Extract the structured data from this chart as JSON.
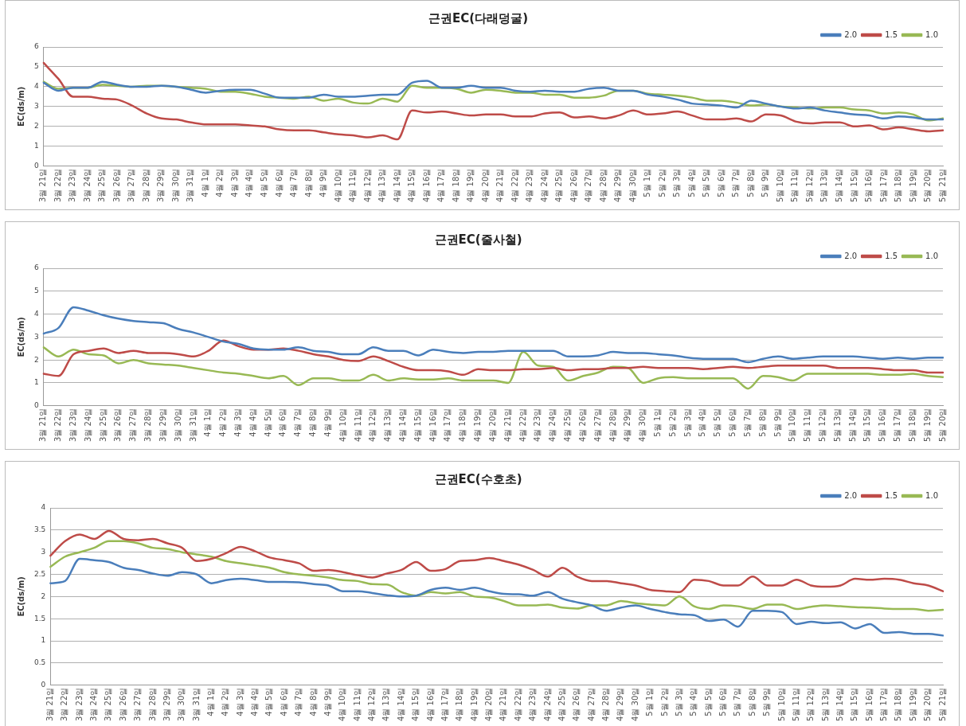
{
  "chart_data": [
    {
      "type": "line",
      "title": "근권EC(다래덩굴)",
      "ylabel": "EC(ds/m)",
      "ylim": [
        0,
        6
      ],
      "yticks": [
        0,
        1,
        2,
        3,
        4,
        5,
        6
      ],
      "grid": "y",
      "legend": "top right",
      "marker": "none",
      "line_style": "solid",
      "categories": [
        "3월 21일",
        "3월 22일",
        "3월 23일",
        "3월 24일",
        "3월 25일",
        "3월 26일",
        "3월 27일",
        "3월 28일",
        "3월 29일",
        "3월 30일",
        "3월 31일",
        "4월 1일",
        "4월 2일",
        "4월 3일",
        "4월 4일",
        "4월 5일",
        "4월 6일",
        "4월 7일",
        "4월 8일",
        "4월 9일",
        "4월 10일",
        "4월 11일",
        "4월 12일",
        "4월 13일",
        "4월 14일",
        "4월 15일",
        "4월 16일",
        "4월 17일",
        "4월 18일",
        "4월 19일",
        "4월 20일",
        "4월 21일",
        "4월 22일",
        "4월 23일",
        "4월 24일",
        "4월 25일",
        "4월 26일",
        "4월 27일",
        "4월 28일",
        "4월 29일",
        "4월 30일",
        "5월 1일",
        "5월 2일",
        "5월 3일",
        "5월 4일",
        "5월 5일",
        "5월 6일",
        "5월 7일",
        "5월 8일",
        "5월 9일",
        "5월 10일",
        "5월 11일",
        "5월 12일",
        "5월 13일",
        "5월 14일",
        "5월 15일",
        "5월 16일",
        "5월 17일",
        "5월 18일",
        "5월 19일",
        "5월 20일",
        "5월 21일"
      ],
      "series": [
        {
          "name": "2.0",
          "color": "#4a7ebb",
          "values": [
            4.2,
            3.8,
            3.95,
            3.95,
            4.25,
            4.1,
            4.0,
            4.0,
            4.05,
            4.0,
            3.85,
            3.7,
            3.8,
            3.85,
            3.85,
            3.65,
            3.45,
            3.45,
            3.45,
            3.6,
            3.5,
            3.5,
            3.55,
            3.6,
            3.6,
            4.2,
            4.3,
            3.95,
            3.95,
            4.05,
            3.95,
            3.95,
            3.8,
            3.75,
            3.8,
            3.75,
            3.75,
            3.9,
            3.95,
            3.8,
            3.8,
            3.6,
            3.5,
            3.35,
            3.15,
            3.1,
            3.05,
            2.95,
            3.3,
            3.15,
            3.0,
            2.9,
            2.95,
            2.8,
            2.7,
            2.6,
            2.55,
            2.4,
            2.5,
            2.45,
            2.35,
            2.35
          ]
        },
        {
          "name": "1.5",
          "color": "#be4b48",
          "values": [
            5.2,
            4.4,
            3.5,
            3.5,
            3.4,
            3.35,
            3.05,
            2.65,
            2.4,
            2.35,
            2.2,
            2.1,
            2.1,
            2.1,
            2.05,
            2.0,
            1.85,
            1.8,
            1.8,
            1.7,
            1.6,
            1.55,
            1.45,
            1.55,
            1.35,
            2.8,
            2.7,
            2.75,
            2.65,
            2.55,
            2.6,
            2.6,
            2.5,
            2.5,
            2.65,
            2.7,
            2.45,
            2.5,
            2.4,
            2.55,
            2.8,
            2.6,
            2.65,
            2.75,
            2.55,
            2.35,
            2.35,
            2.4,
            2.25,
            2.6,
            2.55,
            2.25,
            2.15,
            2.2,
            2.2,
            2.0,
            2.05,
            1.85,
            1.95,
            1.85,
            1.75,
            1.8
          ]
        },
        {
          "name": "1.0",
          "color": "#98b954",
          "values": [
            4.25,
            3.9,
            3.95,
            3.95,
            4.1,
            4.05,
            4.0,
            4.05,
            4.05,
            4.0,
            3.95,
            3.9,
            3.75,
            3.75,
            3.65,
            3.5,
            3.45,
            3.4,
            3.5,
            3.3,
            3.4,
            3.2,
            3.15,
            3.4,
            3.25,
            4.05,
            3.95,
            3.95,
            3.9,
            3.7,
            3.85,
            3.8,
            3.7,
            3.7,
            3.6,
            3.6,
            3.45,
            3.45,
            3.55,
            3.8,
            3.8,
            3.65,
            3.6,
            3.55,
            3.45,
            3.3,
            3.3,
            3.2,
            3.05,
            3.1,
            3.0,
            2.95,
            2.9,
            2.95,
            2.95,
            2.85,
            2.8,
            2.65,
            2.7,
            2.6,
            2.3,
            2.4
          ]
        }
      ]
    },
    {
      "type": "line",
      "title": "근권EC(줄사철)",
      "ylabel": "EC(ds/m)",
      "ylim": [
        0,
        6
      ],
      "yticks": [
        0,
        1,
        2,
        3,
        4,
        5,
        6
      ],
      "grid": "y",
      "legend": "top right",
      "marker": "none",
      "line_style": "solid",
      "categories": [
        "3월 21일",
        "3월 22일",
        "3월 23일",
        "3월 24일",
        "3월 25일",
        "3월 26일",
        "3월 27일",
        "3월 28일",
        "3월 29일",
        "3월 30일",
        "3월 31일",
        "4월 1일",
        "4월 2일",
        "4월 3일",
        "4월 4일",
        "4월 5일",
        "4월 6일",
        "4월 7일",
        "4월 8일",
        "4월 9일",
        "4월 10일",
        "4월 11일",
        "4월 12일",
        "4월 13일",
        "4월 14일",
        "4월 15일",
        "4월 16일",
        "4월 17일",
        "4월 18일",
        "4월 19일",
        "4월 20일",
        "4월 21일",
        "4월 22일",
        "4월 23일",
        "4월 24일",
        "4월 25일",
        "4월 26일",
        "4월 27일",
        "4월 28일",
        "4월 29일",
        "4월 30일",
        "5월 1일",
        "5월 2일",
        "5월 3일",
        "5월 4일",
        "5월 5일",
        "5월 6일",
        "5월 7일",
        "5월 8일",
        "5월 9일",
        "5월 10일",
        "5월 11일",
        "5월 12일",
        "5월 13일",
        "5월 14일",
        "5월 15일",
        "5월 16일",
        "5월 17일",
        "5월 18일",
        "5월 19일",
        "5월 20일"
      ],
      "series": [
        {
          "name": "2.0",
          "color": "#4a7ebb",
          "values": [
            3.15,
            3.4,
            4.3,
            4.15,
            3.95,
            3.8,
            3.7,
            3.65,
            3.6,
            3.35,
            3.2,
            3.0,
            2.8,
            2.7,
            2.5,
            2.45,
            2.45,
            2.55,
            2.4,
            2.35,
            2.25,
            2.25,
            2.55,
            2.4,
            2.4,
            2.2,
            2.45,
            2.35,
            2.3,
            2.35,
            2.35,
            2.4,
            2.4,
            2.4,
            2.4,
            2.15,
            2.15,
            2.2,
            2.35,
            2.3,
            2.3,
            2.25,
            2.2,
            2.1,
            2.05,
            2.05,
            2.05,
            1.9,
            2.05,
            2.15,
            2.05,
            2.1,
            2.15,
            2.15,
            2.15,
            2.1,
            2.05,
            2.1,
            2.05,
            2.1,
            2.1
          ]
        },
        {
          "name": "1.5",
          "color": "#be4b48",
          "values": [
            1.4,
            1.3,
            2.25,
            2.4,
            2.5,
            2.3,
            2.4,
            2.3,
            2.3,
            2.25,
            2.15,
            2.4,
            2.85,
            2.6,
            2.45,
            2.45,
            2.5,
            2.4,
            2.25,
            2.15,
            2.0,
            1.95,
            2.15,
            1.95,
            1.7,
            1.55,
            1.55,
            1.5,
            1.35,
            1.6,
            1.55,
            1.55,
            1.6,
            1.6,
            1.65,
            1.55,
            1.6,
            1.6,
            1.65,
            1.65,
            1.7,
            1.65,
            1.65,
            1.65,
            1.6,
            1.65,
            1.7,
            1.65,
            1.7,
            1.75,
            1.75,
            1.75,
            1.75,
            1.65,
            1.65,
            1.65,
            1.6,
            1.55,
            1.55,
            1.45,
            1.45
          ]
        },
        {
          "name": "1.0",
          "color": "#98b954",
          "values": [
            2.55,
            2.15,
            2.45,
            2.25,
            2.2,
            1.85,
            2.0,
            1.85,
            1.8,
            1.75,
            1.65,
            1.55,
            1.45,
            1.4,
            1.3,
            1.2,
            1.3,
            0.9,
            1.2,
            1.2,
            1.1,
            1.1,
            1.35,
            1.1,
            1.2,
            1.15,
            1.15,
            1.2,
            1.1,
            1.1,
            1.1,
            1.0,
            2.35,
            1.75,
            1.7,
            1.1,
            1.3,
            1.45,
            1.7,
            1.65,
            1.0,
            1.2,
            1.25,
            1.2,
            1.2,
            1.2,
            1.2,
            0.75,
            1.3,
            1.25,
            1.1,
            1.4,
            1.4,
            1.4,
            1.4,
            1.4,
            1.35,
            1.35,
            1.4,
            1.3,
            1.25
          ]
        }
      ]
    },
    {
      "type": "line",
      "title": "근권EC(수호초)",
      "ylabel": "EC(ds/m)",
      "ylim": [
        0,
        4
      ],
      "yticks": [
        0,
        0.5,
        1,
        1.5,
        2,
        2.5,
        3,
        3.5,
        4
      ],
      "grid": "y",
      "legend": "top right",
      "marker": "none",
      "line_style": "solid",
      "categories": [
        "3월 21일",
        "3월 22일",
        "3월 23일",
        "3월 24일",
        "3월 25일",
        "3월 26일",
        "3월 27일",
        "3월 28일",
        "3월 29일",
        "3월 30일",
        "3월 31일",
        "4월 1일",
        "4월 2일",
        "4월 3일",
        "4월 4일",
        "4월 5일",
        "4월 6일",
        "4월 7일",
        "4월 8일",
        "4월 9일",
        "4월 10일",
        "4월 11일",
        "4월 12일",
        "4월 13일",
        "4월 14일",
        "4월 15일",
        "4월 16일",
        "4월 17일",
        "4월 18일",
        "4월 19일",
        "4월 20일",
        "4월 21일",
        "4월 22일",
        "4월 23일",
        "4월 24일",
        "4월 25일",
        "4월 26일",
        "4월 27일",
        "4월 28일",
        "4월 29일",
        "4월 30일",
        "5월 1일",
        "5월 2일",
        "5월 3일",
        "5월 4일",
        "5월 5일",
        "5월 6일",
        "5월 7일",
        "5월 8일",
        "5월 9일",
        "5월 10일",
        "5월 11일",
        "5월 12일",
        "5월 13일",
        "5월 14일",
        "5월 15일",
        "5월 16일",
        "5월 17일",
        "5월 18일",
        "5월 19일",
        "5월 20일",
        "5월 21일"
      ],
      "series": [
        {
          "name": "2.0",
          "color": "#4a7ebb",
          "values": [
            2.3,
            2.35,
            2.85,
            2.82,
            2.78,
            2.65,
            2.6,
            2.52,
            2.47,
            2.55,
            2.5,
            2.3,
            2.37,
            2.4,
            2.37,
            2.33,
            2.33,
            2.32,
            2.28,
            2.25,
            2.12,
            2.12,
            2.08,
            2.03,
            2.0,
            2.02,
            2.15,
            2.2,
            2.15,
            2.2,
            2.12,
            2.06,
            2.05,
            2.02,
            2.1,
            1.95,
            1.87,
            1.8,
            1.68,
            1.75,
            1.8,
            1.72,
            1.65,
            1.6,
            1.58,
            1.45,
            1.48,
            1.32,
            1.68,
            1.68,
            1.65,
            1.38,
            1.43,
            1.4,
            1.42,
            1.28,
            1.38,
            1.18,
            1.2,
            1.16,
            1.16,
            1.12
          ]
        },
        {
          "name": "1.5",
          "color": "#be4b48",
          "values": [
            2.92,
            3.25,
            3.4,
            3.3,
            3.48,
            3.3,
            3.27,
            3.3,
            3.2,
            3.1,
            2.8,
            2.85,
            2.98,
            3.12,
            3.02,
            2.88,
            2.82,
            2.75,
            2.58,
            2.6,
            2.55,
            2.48,
            2.43,
            2.52,
            2.6,
            2.78,
            2.58,
            2.62,
            2.8,
            2.82,
            2.87,
            2.8,
            2.72,
            2.6,
            2.45,
            2.65,
            2.45,
            2.35,
            2.35,
            2.3,
            2.25,
            2.15,
            2.12,
            2.1,
            2.38,
            2.35,
            2.25,
            2.25,
            2.45,
            2.25,
            2.25,
            2.38,
            2.25,
            2.22,
            2.25,
            2.4,
            2.38,
            2.4,
            2.38,
            2.3,
            2.25,
            2.12
          ]
        },
        {
          "name": "1.0",
          "color": "#98b954",
          "values": [
            2.67,
            2.9,
            3.0,
            3.1,
            3.25,
            3.25,
            3.2,
            3.1,
            3.07,
            3.0,
            2.95,
            2.9,
            2.8,
            2.75,
            2.7,
            2.65,
            2.55,
            2.5,
            2.47,
            2.43,
            2.37,
            2.35,
            2.28,
            2.27,
            2.1,
            2.02,
            2.1,
            2.07,
            2.1,
            2.0,
            1.98,
            1.9,
            1.8,
            1.8,
            1.82,
            1.75,
            1.73,
            1.8,
            1.8,
            1.9,
            1.85,
            1.82,
            1.8,
            2.0,
            1.78,
            1.72,
            1.8,
            1.78,
            1.72,
            1.82,
            1.82,
            1.72,
            1.77,
            1.8,
            1.78,
            1.76,
            1.75,
            1.73,
            1.72,
            1.72,
            1.68,
            1.7
          ]
        }
      ]
    }
  ]
}
